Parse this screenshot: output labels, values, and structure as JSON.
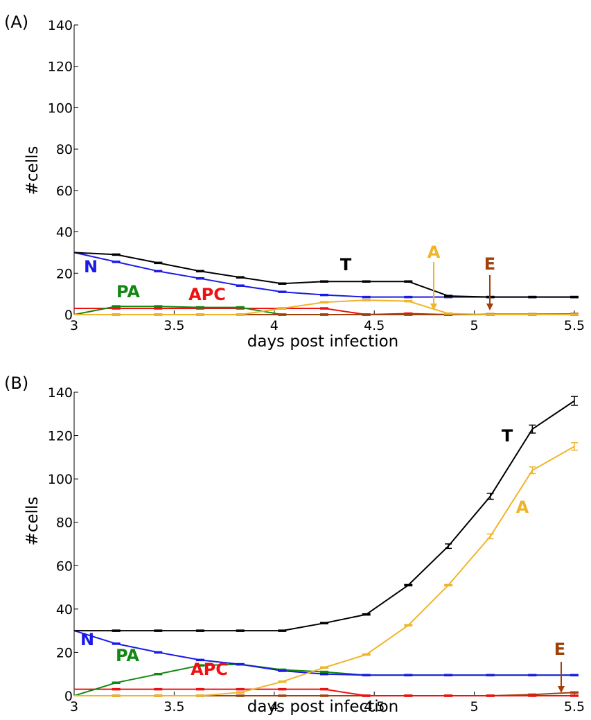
{
  "colors": {
    "T": "#000000",
    "A": "#F0B429",
    "E": "#A0400A",
    "N": "#1A1AE6",
    "PA": "#118811",
    "APC": "#EE1111"
  },
  "chart_data": [
    {
      "type": "line",
      "panel_label": "(A)",
      "xlabel": "days post infection",
      "ylabel": "#cells",
      "xlim": [
        3,
        5.5
      ],
      "ylim": [
        0,
        140
      ],
      "xticks": [
        "3",
        "3.5",
        "4",
        "4.5",
        "5",
        "5.5"
      ],
      "yticks": [
        "0",
        "20",
        "40",
        "60",
        "80",
        "100",
        "120",
        "140"
      ],
      "x": [
        3.0,
        3.21,
        3.42,
        3.63,
        3.83,
        4.04,
        4.25,
        4.46,
        4.67,
        4.87,
        5.08,
        5.29,
        5.5
      ],
      "series": [
        {
          "name": "T",
          "values": [
            30,
            29,
            25,
            21,
            18,
            15,
            16,
            16,
            16,
            9,
            8.5,
            8.5,
            8.5
          ]
        },
        {
          "name": "N",
          "values": [
            30,
            25.5,
            21,
            17.5,
            14,
            11,
            9.5,
            8.5,
            8.5,
            8.5,
            8.5,
            8.5,
            8.5
          ]
        },
        {
          "name": "A",
          "values": [
            0,
            0,
            0,
            0,
            0,
            3,
            6,
            7,
            6.5,
            0.5,
            0,
            0,
            0
          ]
        },
        {
          "name": "E",
          "values": [
            0,
            0,
            0,
            0,
            0,
            0,
            0,
            0,
            0,
            0,
            0.2,
            0.2,
            0.3
          ]
        },
        {
          "name": "PA",
          "values": [
            0,
            4,
            4,
            3.5,
            3.5,
            0,
            0,
            0,
            0,
            0,
            0,
            0,
            0
          ]
        },
        {
          "name": "APC",
          "values": [
            3,
            3,
            3,
            3,
            3,
            3,
            3,
            0,
            0.5,
            0,
            0,
            0,
            0
          ]
        }
      ],
      "annotations": [
        {
          "series": "T",
          "text": "T"
        },
        {
          "series": "N",
          "text": "N"
        },
        {
          "series": "A",
          "text": "A"
        },
        {
          "series": "E",
          "text": "E"
        },
        {
          "series": "PA",
          "text": "PA"
        },
        {
          "series": "APC",
          "text": "APC"
        }
      ],
      "grid": false,
      "error_bars": true
    },
    {
      "type": "line",
      "panel_label": "(B)",
      "xlabel": "days post infection",
      "ylabel": "#cells",
      "xlim": [
        3,
        5.5
      ],
      "ylim": [
        0,
        140
      ],
      "xticks": [
        "3",
        "3.5",
        "4",
        "4.5",
        "5",
        "5.5"
      ],
      "yticks": [
        "0",
        "20",
        "40",
        "60",
        "80",
        "100",
        "120",
        "140"
      ],
      "x": [
        3.0,
        3.21,
        3.42,
        3.63,
        3.83,
        4.04,
        4.25,
        4.46,
        4.67,
        4.87,
        5.08,
        5.29,
        5.5
      ],
      "series": [
        {
          "name": "T",
          "values": [
            30,
            30,
            30,
            30,
            30,
            30,
            33.5,
            37.5,
            51,
            69,
            92,
            123,
            136
          ]
        },
        {
          "name": "A",
          "values": [
            0,
            0,
            0,
            0,
            1.5,
            6.5,
            13,
            19,
            32.5,
            51,
            73.5,
            104,
            115
          ]
        },
        {
          "name": "N",
          "values": [
            30,
            24,
            20,
            16.5,
            14.5,
            11.5,
            10,
            9.5,
            9.5,
            9.5,
            9.5,
            9.5,
            9.5
          ]
        },
        {
          "name": "PA",
          "values": [
            0,
            6,
            10,
            14,
            14.5,
            12,
            11,
            9.5,
            9.5,
            9.5,
            9.5,
            9.5,
            9.5
          ]
        },
        {
          "name": "APC",
          "values": [
            3,
            3,
            3,
            3,
            3,
            3,
            3,
            0,
            0,
            0,
            0,
            0,
            0
          ]
        },
        {
          "name": "E",
          "values": [
            0,
            0,
            0,
            0,
            0,
            0,
            0,
            0,
            0,
            0,
            0,
            0.5,
            1.5
          ]
        }
      ],
      "annotations": [
        {
          "series": "T",
          "text": "T"
        },
        {
          "series": "A",
          "text": "A"
        },
        {
          "series": "N",
          "text": "N"
        },
        {
          "series": "PA",
          "text": "PA"
        },
        {
          "series": "APC",
          "text": "APC"
        },
        {
          "series": "E",
          "text": "E"
        }
      ],
      "grid": false,
      "error_bars": true
    }
  ]
}
